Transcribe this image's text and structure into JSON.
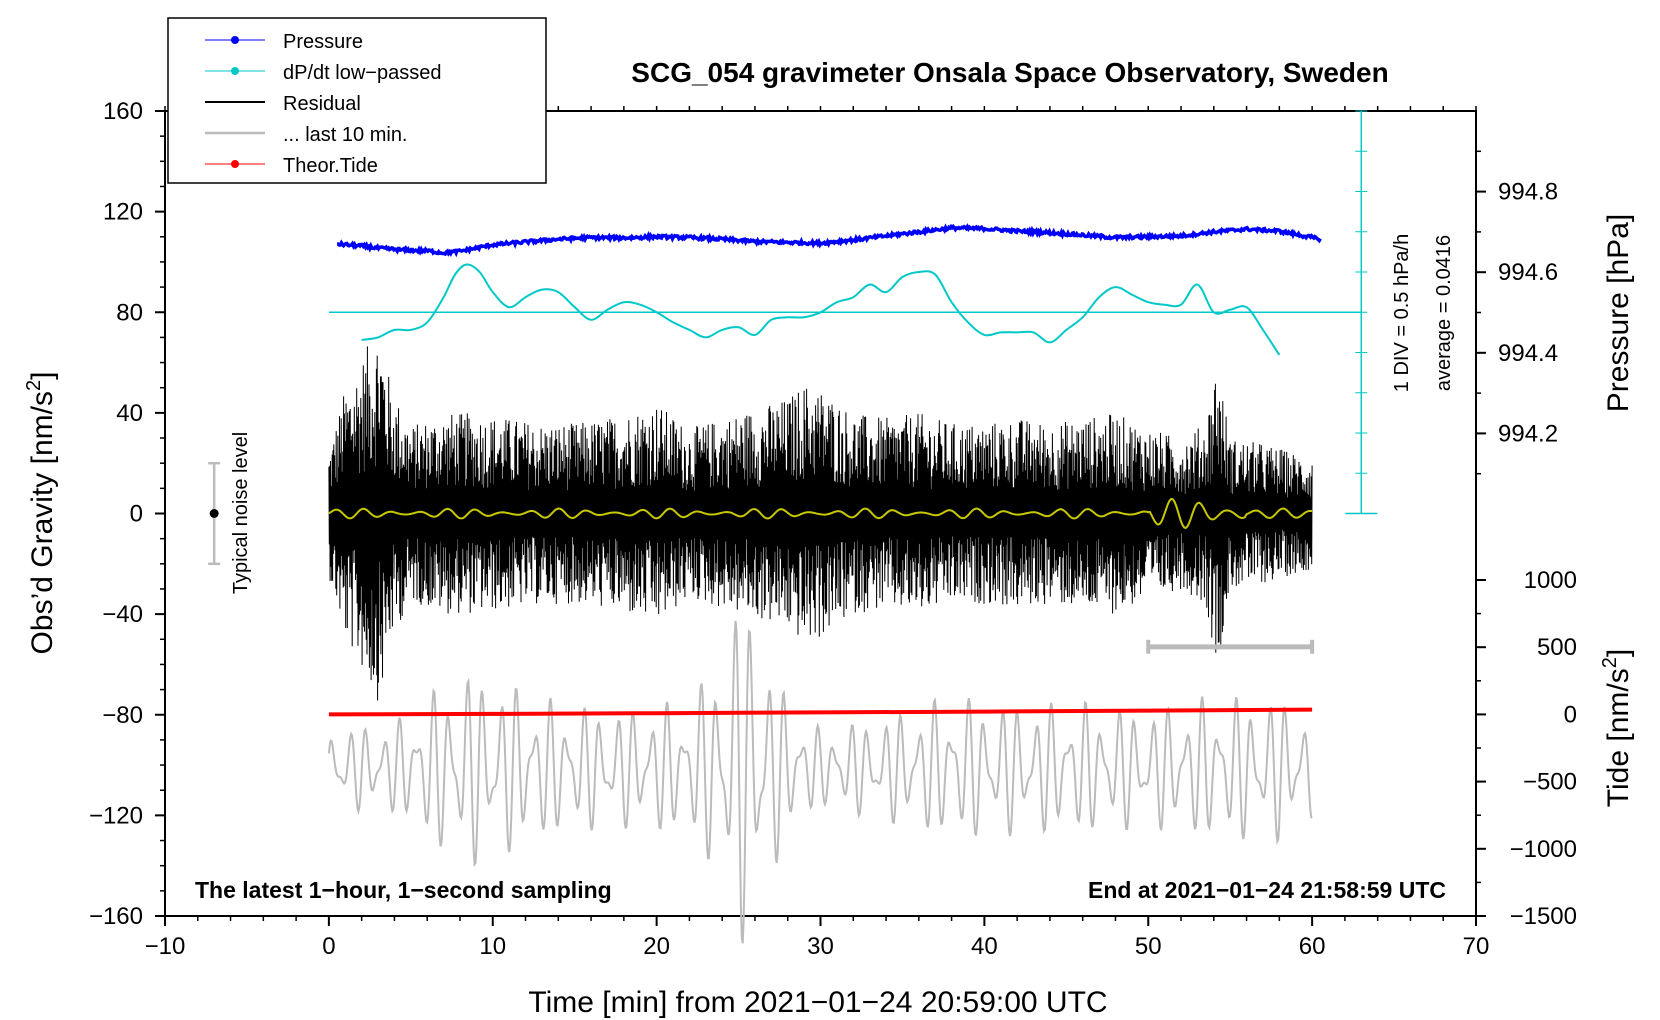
{
  "chart_data": {
    "type": "line",
    "title": "SCG_054 gravimeter Onsala Space Observatory, Sweden",
    "xlabel": "Time [min] from 2021−01−24 20:59:00 UTC",
    "ylabel_left_prefix": "Obs’d Gravity [nm/s",
    "ylabel_left_sup": "2",
    "ylabel_left_suffix": "]",
    "ylabel_pressure": "Pressure [hPa]",
    "ylabel_tide_prefix": "Tide [nm/s",
    "ylabel_tide_sup": "2",
    "ylabel_tide_suffix": "]",
    "xlim": [
      -10,
      70
    ],
    "ylim": [
      -160,
      160
    ],
    "x_ticks": [
      -10,
      0,
      10,
      20,
      30,
      40,
      50,
      60,
      70
    ],
    "x_tick_labels": [
      "−10",
      "0",
      "10",
      "20",
      "30",
      "40",
      "50",
      "60",
      "70"
    ],
    "y_ticks": [
      160,
      120,
      80,
      40,
      0,
      -40,
      -80,
      -120,
      -160
    ],
    "y_tick_labels": [
      "160",
      "120",
      "80",
      "40",
      "0",
      "−40",
      "−80",
      "−120",
      "−160"
    ],
    "pressure_axis": {
      "range": [
        994.0,
        995.0
      ],
      "ticks": [
        994.2,
        994.4,
        994.6,
        994.8
      ],
      "tick_labels": [
        "994.2",
        "994.4",
        "994.6",
        "994.8"
      ]
    },
    "tide_axis": {
      "range": [
        -1500,
        1000
      ],
      "ticks": [
        1000,
        500,
        0,
        -500,
        -1000,
        -1500
      ],
      "tick_labels": [
        "1000",
        "500",
        "0",
        "−500",
        "−1000",
        "−1500"
      ]
    },
    "legend": {
      "position": "top-left",
      "entries": [
        {
          "label": "Pressure",
          "color": "#0000ff",
          "marker": true
        },
        {
          "label": "dP/dt low−passed",
          "color": "#00c8c8",
          "marker": true
        },
        {
          "label": "Residual",
          "color": "#000000",
          "marker": false
        },
        {
          "label": "... last 10 min.",
          "color": "#bbbbbb",
          "marker": false
        },
        {
          "label": "Theor.Tide",
          "color": "#ff0000",
          "marker": true
        }
      ]
    },
    "colors": {
      "pressure": "#0000ff",
      "dpdt": "#00c8c8",
      "residual": "#000000",
      "residual_lowpass": "#c8c800",
      "last10": "#bbbbbb",
      "tide": "#ff0000",
      "noise_bar": "#bbbbbb"
    },
    "annotations": {
      "noise_label": "Typical noise level",
      "dpdt_scale": "1 DIV = 0.5 hPa/h",
      "dpdt_average": "average = 0.0416",
      "bottom_left": "The latest 1−hour, 1−second sampling",
      "bottom_right": "End at 2021−01−24 21:58:59 UTC"
    },
    "noise_level": {
      "x": -7,
      "center": 0,
      "half_range": 20
    },
    "last10_bracket": {
      "x_start": 50,
      "x_end": 60,
      "y_gravity": -53
    },
    "dpdt_scale_axis": {
      "x": 63,
      "y_min_gravity": 0,
      "y_max_gravity": 160,
      "divisions": 10,
      "baseline_gravity": 80
    },
    "series": {
      "pressure": {
        "axis": "pressure",
        "x": [
          0.5,
          2,
          3,
          4.5,
          6,
          7,
          8,
          9,
          10,
          12,
          14,
          16,
          18,
          20,
          22,
          24,
          26,
          28,
          30,
          32,
          34,
          36,
          38,
          40,
          42,
          44,
          46,
          48,
          50,
          52,
          54,
          56,
          58,
          60.5
        ],
        "y": [
          994.67,
          994.665,
          994.66,
          994.655,
          994.653,
          994.648,
          994.652,
          994.66,
          994.668,
          994.675,
          994.682,
          994.686,
          994.685,
          994.688,
          994.686,
          994.682,
          994.676,
          994.674,
          994.672,
          994.68,
          994.69,
          994.7,
          994.71,
          994.708,
          994.702,
          994.698,
          994.692,
          994.686,
          994.688,
          994.69,
          994.7,
          994.707,
          994.702,
          994.682
        ]
      },
      "dpdt_lowpassed": {
        "axis": "gravity",
        "x": [
          2,
          3,
          4,
          5,
          6,
          7,
          7.7,
          8.4,
          9.2,
          10,
          11,
          12,
          13,
          14,
          15,
          16,
          17,
          18,
          19,
          20,
          21,
          22,
          23,
          24,
          25,
          26,
          27,
          28,
          29,
          30,
          31,
          32,
          33,
          34,
          35,
          36,
          37,
          38,
          39,
          40,
          41,
          42,
          43,
          44,
          45,
          46,
          47,
          48,
          49,
          50,
          51,
          52,
          53,
          54,
          55,
          56,
          57,
          58
        ],
        "y": [
          69,
          70,
          73,
          73,
          76,
          86,
          95,
          99,
          96,
          88,
          82,
          86,
          89,
          88,
          82,
          77,
          81,
          84,
          83,
          80,
          76,
          73,
          70,
          73,
          74,
          71,
          77,
          78,
          78,
          80,
          84,
          86,
          91,
          88,
          94,
          96,
          95,
          84,
          76,
          71,
          72,
          72,
          72,
          68,
          73,
          78,
          86,
          90,
          87,
          84,
          83,
          83,
          91,
          80,
          81,
          82,
          73,
          63
        ]
      },
      "residual": {
        "axis": "gravity",
        "x_range": [
          0,
          60
        ],
        "envelope_x": [
          0,
          1,
          2,
          2.6,
          3.1,
          3.8,
          5,
          7,
          9,
          11,
          13,
          15,
          17,
          19,
          20,
          22,
          24,
          26,
          28,
          29,
          30,
          32,
          34,
          36,
          38,
          40,
          42,
          44,
          46,
          48,
          50,
          52,
          53.5,
          54.2,
          55,
          57,
          59,
          60
        ],
        "envelope": [
          25,
          50,
          62,
          70,
          76,
          50,
          35,
          40,
          40,
          38,
          36,
          36,
          38,
          42,
          44,
          34,
          38,
          42,
          46,
          52,
          50,
          40,
          38,
          40,
          36,
          36,
          38,
          36,
          38,
          40,
          34,
          30,
          36,
          62,
          30,
          28,
          24,
          22
        ],
        "lowpass_amplitude": 2
      },
      "last10_min": {
        "axis": "tide",
        "x_range": [
          0,
          60
        ],
        "baseline": -400,
        "envelope_x": [
          0,
          4,
          8,
          10,
          14,
          18,
          20,
          22,
          24,
          25,
          26,
          28,
          30,
          34,
          38,
          42,
          46,
          50,
          54,
          58,
          60
        ],
        "envelope": [
          300,
          350,
          750,
          700,
          500,
          450,
          500,
          500,
          900,
          1350,
          1200,
          500,
          300,
          400,
          550,
          500,
          500,
          450,
          550,
          550,
          400
        ]
      },
      "theoretical_tide": {
        "axis": "tide",
        "x": [
          0,
          10,
          20,
          30,
          40,
          50,
          60
        ],
        "y": [
          0,
          4,
          9,
          15,
          21,
          28,
          36
        ]
      }
    }
  }
}
